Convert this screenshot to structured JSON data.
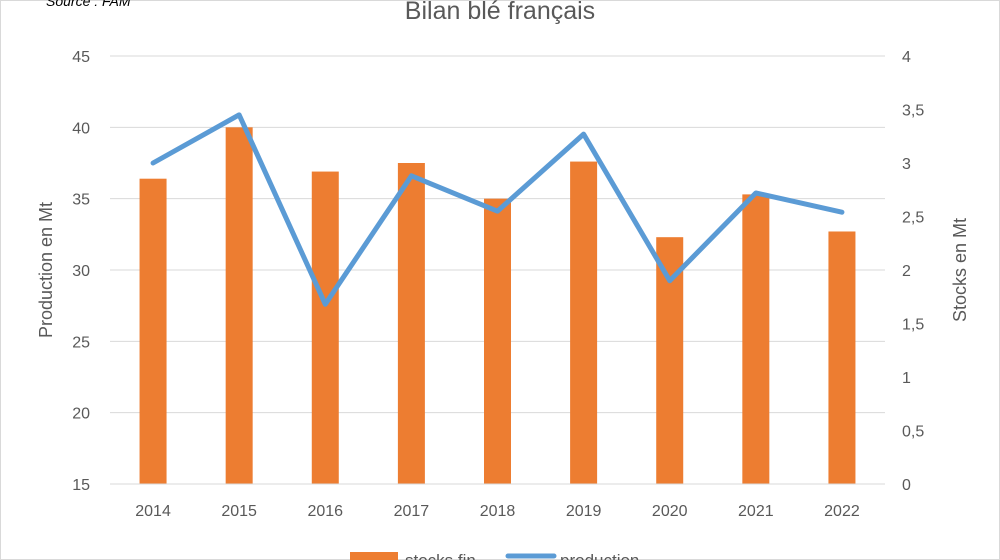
{
  "chart_data": {
    "type": "bar",
    "title": "Bilan blé français",
    "source": "Source : FAM",
    "categories": [
      "2014",
      "2015",
      "2016",
      "2017",
      "2018",
      "2019",
      "2020",
      "2021",
      "2022"
    ],
    "series": [
      {
        "name": "stocks fin",
        "type": "bar",
        "axis": "left",
        "color": "#ED7D31",
        "values": [
          36.4,
          40.0,
          36.9,
          37.5,
          35.0,
          37.6,
          32.3,
          35.3,
          32.7
        ]
      },
      {
        "name": "production",
        "type": "line",
        "axis": "right",
        "color": "#5B9BD5",
        "values": [
          3.0,
          3.45,
          1.68,
          2.88,
          2.55,
          3.27,
          1.9,
          2.72,
          2.54
        ]
      }
    ],
    "ylabel": "Production en Mt",
    "y2label": "Stocks en Mt",
    "ylim": [
      15,
      45
    ],
    "y2lim": [
      0,
      4
    ],
    "yticks": [
      "15",
      "20",
      "25",
      "30",
      "35",
      "40",
      "45"
    ],
    "y2ticks": [
      "0",
      "0,5",
      "1",
      "1,5",
      "2",
      "2,5",
      "3",
      "3,5",
      "4"
    ],
    "grid": true,
    "legend_position": "bottom"
  }
}
